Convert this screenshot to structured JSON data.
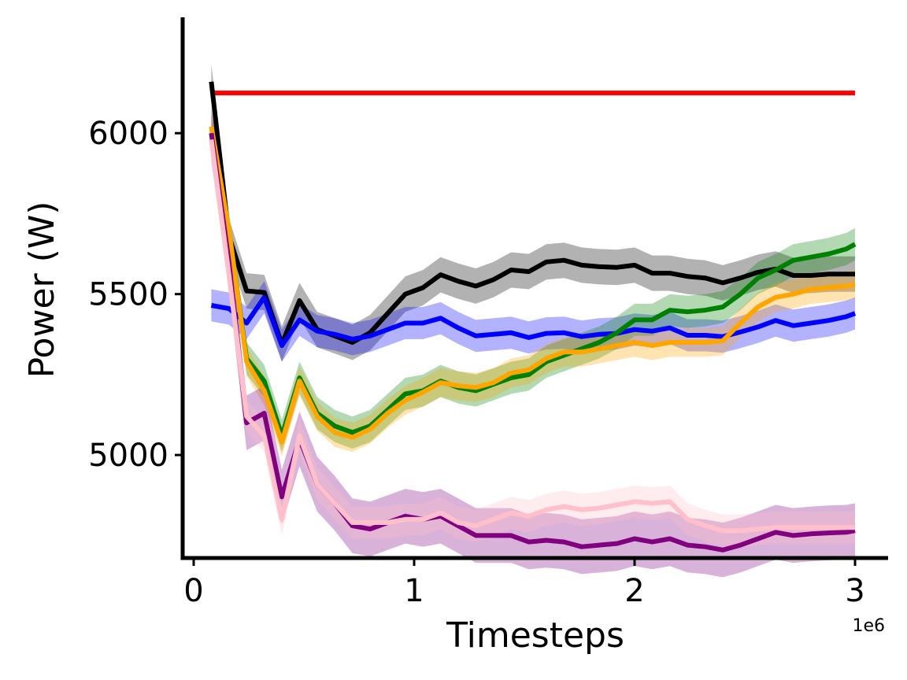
{
  "chart_data": {
    "type": "line",
    "title": "",
    "xlabel": "Timesteps",
    "ylabel": "Power (W)",
    "x_offset_label": "1e6",
    "xlim": [
      -0.05,
      3.15
    ],
    "ylim": [
      4680,
      6360
    ],
    "xticks": [
      0,
      1,
      2,
      3
    ],
    "yticks": [
      5000,
      5500,
      6000
    ],
    "grid": false,
    "legend": "none",
    "x": [
      0.08,
      0.16,
      0.24,
      0.32,
      0.4,
      0.48,
      0.56,
      0.64,
      0.72,
      0.8,
      0.88,
      0.96,
      1.04,
      1.12,
      1.2,
      1.28,
      1.36,
      1.44,
      1.52,
      1.6,
      1.68,
      1.76,
      1.84,
      1.92,
      2.0,
      2.08,
      2.16,
      2.24,
      2.32,
      2.4,
      2.48,
      2.56,
      2.64,
      2.72,
      2.8,
      2.88,
      2.96,
      3.0
    ],
    "series": [
      {
        "color": "#ff0000",
        "values": [
          6125,
          6125,
          6125,
          6125,
          6125,
          6125,
          6125,
          6125,
          6125,
          6125,
          6125,
          6125,
          6125,
          6125,
          6125,
          6125,
          6125,
          6125,
          6125,
          6125,
          6125,
          6125,
          6125,
          6125,
          6125,
          6125,
          6125,
          6125,
          6125,
          6125,
          6125,
          6125,
          6125,
          6125,
          6125,
          6125,
          6125,
          6125
        ],
        "band": 0
      },
      {
        "color": "#000000",
        "values": [
          6160,
          5680,
          5510,
          5505,
          5345,
          5480,
          5390,
          5370,
          5350,
          5380,
          5440,
          5500,
          5520,
          5560,
          5540,
          5525,
          5545,
          5575,
          5570,
          5600,
          5605,
          5590,
          5585,
          5583,
          5590,
          5565,
          5565,
          5555,
          5550,
          5535,
          5550,
          5568,
          5578,
          5558,
          5558,
          5562,
          5562,
          5562
        ],
        "band": 55
      },
      {
        "color": "#0000ff",
        "values": [
          5465,
          5455,
          5410,
          5490,
          5340,
          5420,
          5385,
          5375,
          5360,
          5370,
          5390,
          5410,
          5410,
          5425,
          5395,
          5370,
          5375,
          5380,
          5365,
          5378,
          5380,
          5368,
          5375,
          5378,
          5390,
          5385,
          5395,
          5372,
          5372,
          5368,
          5382,
          5398,
          5418,
          5402,
          5410,
          5418,
          5430,
          5440
        ],
        "band": 50
      },
      {
        "color": "#008000",
        "values": [
          6020,
          5700,
          5300,
          5230,
          5060,
          5240,
          5130,
          5090,
          5070,
          5090,
          5140,
          5190,
          5200,
          5230,
          5210,
          5200,
          5220,
          5240,
          5250,
          5290,
          5310,
          5330,
          5350,
          5380,
          5420,
          5420,
          5450,
          5445,
          5450,
          5460,
          5500,
          5550,
          5575,
          5605,
          5615,
          5625,
          5640,
          5655
        ],
        "band": 50
      },
      {
        "color": "#ffa500",
        "values": [
          6020,
          5700,
          5290,
          5200,
          5040,
          5230,
          5120,
          5070,
          5055,
          5080,
          5130,
          5170,
          5195,
          5225,
          5215,
          5210,
          5225,
          5255,
          5265,
          5300,
          5320,
          5320,
          5330,
          5340,
          5350,
          5340,
          5350,
          5350,
          5350,
          5355,
          5410,
          5460,
          5490,
          5500,
          5515,
          5520,
          5525,
          5530
        ],
        "band": 45
      },
      {
        "color": "#800080",
        "values": [
          6000,
          5600,
          5100,
          5130,
          4870,
          5050,
          4910,
          4850,
          4780,
          4770,
          4790,
          4810,
          4800,
          4810,
          4780,
          4750,
          4750,
          4750,
          4730,
          4735,
          4730,
          4715,
          4720,
          4725,
          4740,
          4730,
          4740,
          4720,
          4715,
          4705,
          4720,
          4740,
          4760,
          4750,
          4755,
          4758,
          4760,
          4765
        ],
        "band": 85
      },
      {
        "color": "#ffc0cb",
        "values": [
          5980,
          5560,
          5120,
          5060,
          4800,
          5060,
          4910,
          4850,
          4790,
          4790,
          4790,
          4800,
          4800,
          4820,
          4790,
          4780,
          4800,
          4820,
          4810,
          4830,
          4840,
          4830,
          4835,
          4845,
          4855,
          4850,
          4855,
          4800,
          4780,
          4765,
          4765,
          4770,
          4775,
          4775,
          4775,
          4775,
          4775,
          4775
        ],
        "band": 50
      }
    ]
  }
}
